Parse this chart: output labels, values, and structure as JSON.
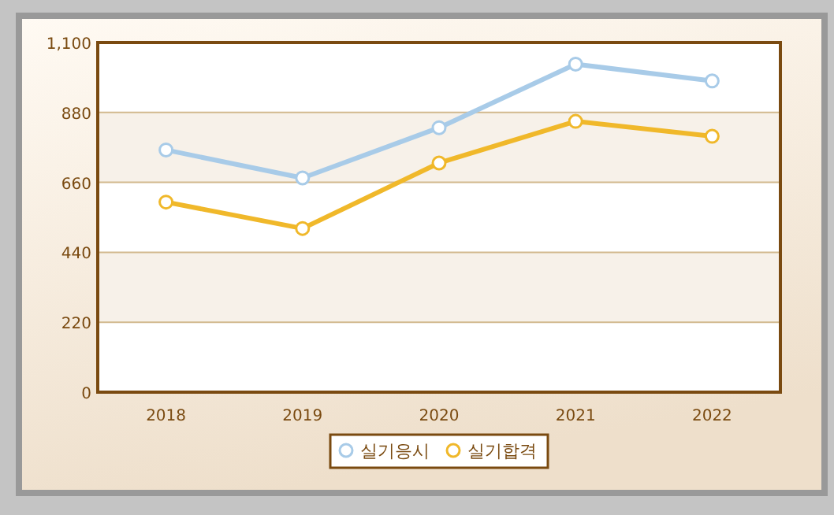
{
  "chart_data": {
    "type": "line",
    "categories": [
      "2018",
      "2019",
      "2020",
      "2021",
      "2022"
    ],
    "series": [
      {
        "name": "실기응시",
        "color": "#a8cbe8",
        "values": [
          762,
          674,
          832,
          1032,
          979
        ]
      },
      {
        "name": "실기합격",
        "color": "#f0b82a",
        "values": [
          598,
          515,
          721,
          852,
          805
        ]
      }
    ],
    "ylim": [
      0,
      1100
    ],
    "yticks": [
      0,
      220,
      440,
      660,
      880,
      {
        "value": 1100,
        "label": "1,100"
      }
    ],
    "grid": "y",
    "legend": "bottom",
    "marker": "circle",
    "line_style": "solid"
  }
}
